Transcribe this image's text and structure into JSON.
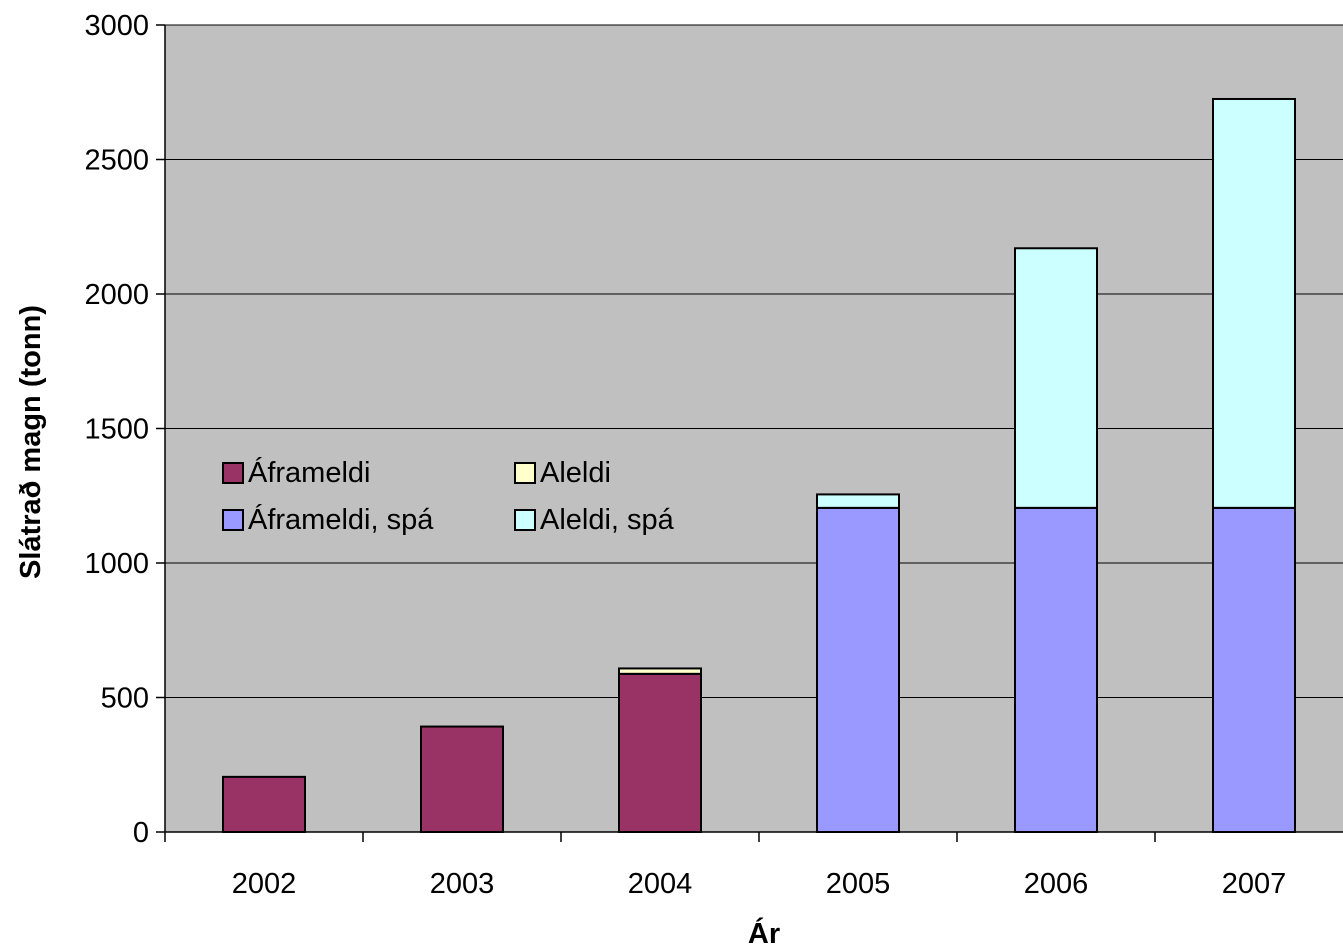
{
  "chart_data": {
    "type": "bar",
    "stacked": true,
    "xlabel": "Ár",
    "ylabel": "Slátrað magn (tonn)",
    "categories": [
      "2002",
      "2003",
      "2004",
      "2005",
      "2006",
      "2007"
    ],
    "ylim": [
      0,
      3000
    ],
    "yticks": [
      "0",
      "500",
      "1000",
      "1500",
      "2000",
      "2500",
      "3000"
    ],
    "grid": true,
    "legend_position": "center-left",
    "plot_background": "#c0c0c0",
    "series": [
      {
        "name": "Áframeldi",
        "color": "#993366",
        "values": [
          205,
          392,
          588,
          0,
          0,
          0
        ]
      },
      {
        "name": "Aleldi",
        "color": "#ffffcc",
        "values": [
          0,
          0,
          20,
          0,
          0,
          0
        ]
      },
      {
        "name": "Áframeldi, spá",
        "color": "#9999ff",
        "values": [
          0,
          0,
          0,
          1205,
          1205,
          1205
        ]
      },
      {
        "name": "Aleldi, spá",
        "color": "#ccffff",
        "values": [
          0,
          0,
          0,
          50,
          965,
          1520
        ]
      }
    ]
  }
}
